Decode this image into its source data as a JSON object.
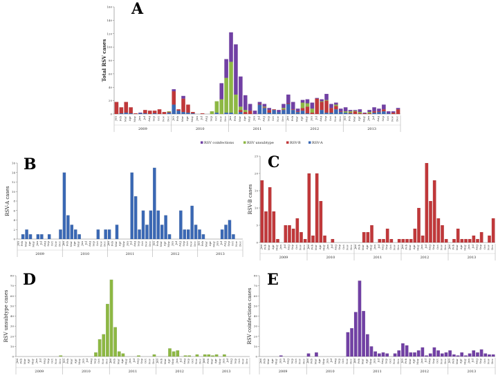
{
  "figure": {
    "panel_tags": [
      "A",
      "B",
      "C",
      "D",
      "E"
    ],
    "years": [
      "2009",
      "2010",
      "2011",
      "2012",
      "2013"
    ]
  },
  "chart_data": [
    {
      "id": "A",
      "type": "bar",
      "stacked": true,
      "ylabel": "Total RSV cases",
      "ylim": [
        0,
        160
      ],
      "yticks": [
        0,
        20,
        40,
        60,
        80,
        100,
        120,
        140,
        160
      ],
      "categories": [
        "Jun",
        "Feb",
        "Mar",
        "Apr",
        "May",
        "Jun",
        "Jul",
        "Aug",
        "Sep",
        "Oct",
        "Nov",
        "Dec",
        "Jan",
        "Feb",
        "Mar",
        "Apr",
        "May",
        "Jun",
        "Jul",
        "Aug",
        "Sep",
        "Oct",
        "Nov",
        "Dec",
        "Jan",
        "Feb",
        "Mar",
        "Apr",
        "May",
        "Jun",
        "Jul",
        "Aug",
        "Sep",
        "Oct",
        "Nov",
        "Dec",
        "Jan",
        "Feb",
        "Mar",
        "Apr",
        "May",
        "Jun",
        "Jul",
        "Aug",
        "Sep",
        "Oct",
        "Nov",
        "Dec",
        "Jan",
        "Feb",
        "Mar",
        "Apr",
        "May",
        "Jun",
        "Jul",
        "Aug",
        "Sep",
        "Oct",
        "Nov",
        "Dec"
      ],
      "series": [
        {
          "name": "RSV-A",
          "color": "#3a68b4",
          "values": [
            0,
            1,
            2,
            1,
            0,
            1,
            1,
            0,
            1,
            0,
            0,
            2,
            14,
            5,
            3,
            2,
            1,
            0,
            0,
            0,
            0,
            2,
            0,
            2,
            2,
            0,
            3,
            0,
            0,
            0,
            14,
            9,
            2,
            6,
            3,
            6,
            15,
            6,
            3,
            5,
            1,
            0,
            0,
            6,
            2,
            2,
            7,
            3,
            2,
            1,
            0,
            0,
            0,
            0,
            2,
            3,
            4,
            1,
            0,
            0
          ]
        },
        {
          "name": "RSV-B",
          "color": "#c0383a",
          "values": [
            18,
            9,
            16,
            9,
            1,
            0,
            5,
            5,
            4,
            7,
            3,
            1,
            20,
            2,
            20,
            12,
            2,
            0,
            1,
            0,
            0,
            0,
            0,
            0,
            0,
            0,
            3,
            3,
            5,
            0,
            1,
            1,
            4,
            1,
            0,
            1,
            1,
            1,
            1,
            4,
            10,
            2,
            23,
            12,
            18,
            7,
            5,
            1,
            0,
            1,
            4,
            1,
            1,
            1,
            2,
            1,
            3,
            0,
            2,
            7
          ]
        },
        {
          "name": "RSV unsubtype",
          "color": "#8db843",
          "values": [
            0,
            0,
            0,
            0,
            0,
            0,
            0,
            0,
            0,
            0,
            0,
            1,
            0,
            0,
            0,
            0,
            0,
            0,
            0,
            0,
            4,
            17,
            22,
            52,
            76,
            29,
            5,
            3,
            0,
            0,
            0,
            1,
            0,
            0,
            0,
            2,
            0,
            0,
            0,
            8,
            5,
            6,
            0,
            1,
            1,
            0,
            2,
            0,
            2,
            2,
            1,
            2,
            0,
            2,
            0,
            0,
            0,
            0,
            0,
            0
          ]
        },
        {
          "name": "RSV coinfections",
          "color": "#7140a4",
          "values": [
            0,
            0,
            0,
            0,
            0,
            1,
            0,
            0,
            0,
            0,
            0,
            0,
            3,
            0,
            4,
            0,
            0,
            0,
            0,
            0,
            0,
            0,
            24,
            28,
            44,
            75,
            45,
            22,
            10,
            5,
            3,
            4,
            3,
            0,
            3,
            6,
            13,
            11,
            4,
            4,
            6,
            9,
            1,
            3,
            9,
            6,
            3,
            4,
            6,
            2,
            1,
            4,
            1,
            3,
            6,
            4,
            7,
            3,
            2,
            2
          ]
        }
      ]
    },
    {
      "id": "B",
      "type": "bar",
      "ylabel": "RSV-A cases",
      "ylim": [
        0,
        16
      ],
      "yticks": [
        0,
        2,
        4,
        6,
        8,
        10,
        12,
        14,
        16
      ],
      "color": "#3a68b4",
      "series_ref": 0
    },
    {
      "id": "C",
      "type": "bar",
      "ylabel": "RSV-B cases",
      "ylim": [
        0,
        25
      ],
      "yticks": [
        0,
        5,
        10,
        15,
        20,
        25
      ],
      "color": "#c0383a",
      "series_ref": 1
    },
    {
      "id": "D",
      "type": "bar",
      "ylabel": "RSV unsubtype cases",
      "ylim": [
        0,
        80
      ],
      "yticks": [
        0,
        10,
        20,
        30,
        40,
        50,
        60,
        70,
        80
      ],
      "color": "#8db843",
      "series_ref": 2
    },
    {
      "id": "E",
      "type": "bar",
      "ylabel": "RSV coinfections cases",
      "ylim": [
        0,
        80
      ],
      "yticks": [
        0,
        10,
        20,
        30,
        40,
        50,
        60,
        70,
        80
      ],
      "color": "#7140a4",
      "series_ref": 3
    }
  ]
}
